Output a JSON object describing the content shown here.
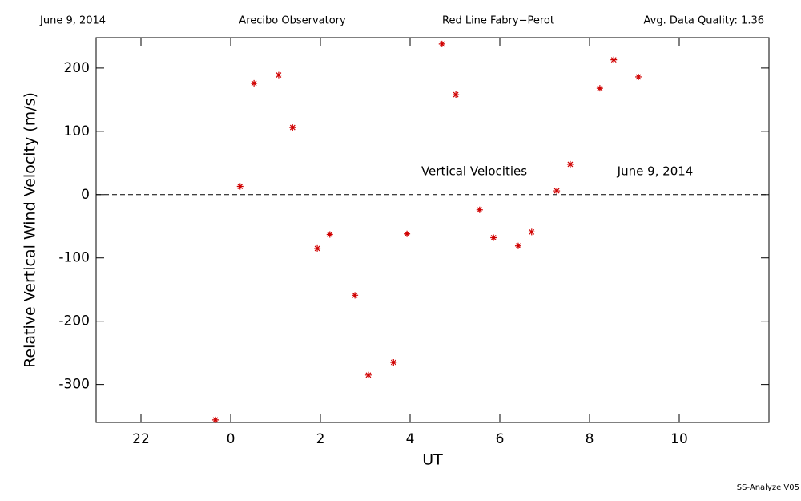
{
  "chart_data": {
    "type": "scatter",
    "header": [
      "June 9, 2014",
      "Arecibo Observatory",
      "Red Line Fabry−Perot",
      "Avg. Data Quality: 1.36"
    ],
    "annotations": [
      "Vertical Velocities",
      "June 9, 2014"
    ],
    "footer": "SS-Analyze V05",
    "xlabel": "UT",
    "ylabel": "Relative Vertical Wind Velocity (m/s)",
    "xlim": [
      -3,
      12
    ],
    "ylim": [
      -360,
      248
    ],
    "xticks": [
      {
        "value": -2,
        "label": "22"
      },
      0,
      2,
      4,
      6,
      8,
      10
    ],
    "yticks": [
      -300,
      -200,
      -100,
      0,
      100,
      200
    ],
    "reference_line": 0,
    "color": "#d00000",
    "x": [
      -0.34,
      0.21,
      0.52,
      1.07,
      1.38,
      1.93,
      2.21,
      2.77,
      3.07,
      3.63,
      3.93,
      4.71,
      5.02,
      5.55,
      5.86,
      6.41,
      6.71,
      7.27,
      7.57,
      8.23,
      8.54,
      9.09
    ],
    "values": [
      -356,
      13,
      176,
      189,
      106,
      -85,
      -63,
      -159,
      -285,
      -265,
      -62,
      238,
      158,
      -24,
      -68,
      -81,
      -59,
      6,
      48,
      168,
      213,
      186
    ]
  }
}
